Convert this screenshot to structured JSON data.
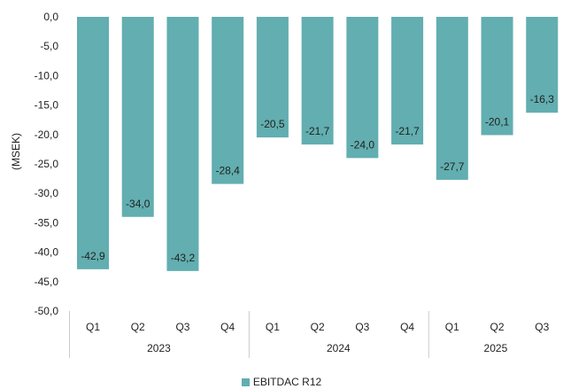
{
  "chart_data": {
    "type": "bar",
    "ylabel": "(MSEK)",
    "ylim": [
      -50,
      0
    ],
    "ytick_step": 5,
    "ytick_labels": [
      "0,0",
      "-5,0",
      "-10,0",
      "-15,0",
      "-20,0",
      "-25,0",
      "-30,0",
      "-35,0",
      "-40,0",
      "-45,0",
      "-50,0"
    ],
    "categories": [
      "Q1",
      "Q2",
      "Q3",
      "Q4",
      "Q1",
      "Q2",
      "Q3",
      "Q4",
      "Q1",
      "Q2",
      "Q3"
    ],
    "groups": [
      {
        "label": "2023",
        "count": 4
      },
      {
        "label": "2024",
        "count": 4
      },
      {
        "label": "2025",
        "count": 3
      }
    ],
    "series": [
      {
        "name": "EBITDAC R12",
        "color": "#62aeb0",
        "values": [
          -42.9,
          -34.0,
          -43.2,
          -28.4,
          -20.5,
          -21.7,
          -24.0,
          -21.7,
          -27.7,
          -20.1,
          -16.3
        ],
        "value_labels": [
          "-42,9",
          "-34,0",
          "-43,2",
          "-28,4",
          "-20,5",
          "-21,7",
          "-24,0",
          "-21,7",
          "-27,7",
          "-20,1",
          "-16,3"
        ]
      }
    ],
    "grid": false,
    "legend_position": "bottom"
  }
}
